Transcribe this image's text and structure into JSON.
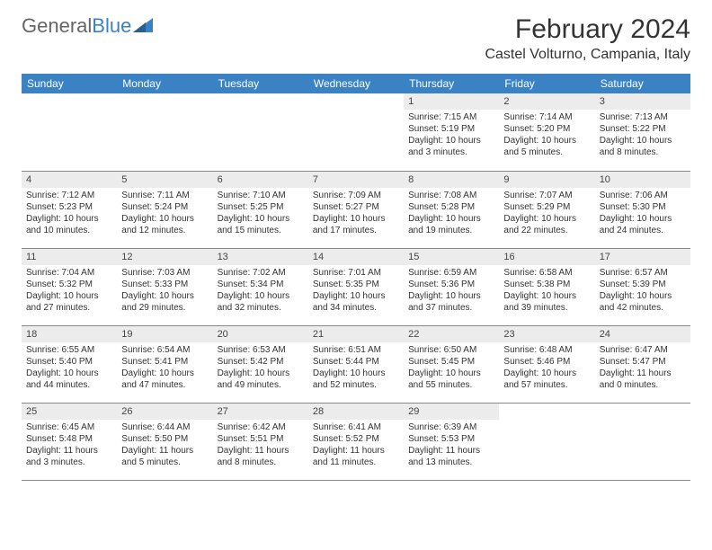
{
  "brand": {
    "part1": "General",
    "part2": "Blue"
  },
  "title": "February 2024",
  "location": "Castel Volturno, Campania, Italy",
  "colors": {
    "header_bg": "#3b82c4",
    "header_text": "#ffffff",
    "daynum_bg": "#ececec",
    "text": "#333333",
    "border": "#888888",
    "page_bg": "#ffffff"
  },
  "typography": {
    "title_fontsize": 30,
    "location_fontsize": 16,
    "weekday_fontsize": 12,
    "cell_fontsize": 10,
    "font_family": "Arial"
  },
  "layout": {
    "columns": 7,
    "rows": 5,
    "first_weekday_index": 4
  },
  "weekdays": [
    "Sunday",
    "Monday",
    "Tuesday",
    "Wednesday",
    "Thursday",
    "Friday",
    "Saturday"
  ],
  "days": [
    {
      "n": "1",
      "sunrise": "Sunrise: 7:15 AM",
      "sunset": "Sunset: 5:19 PM",
      "dl1": "Daylight: 10 hours",
      "dl2": "and 3 minutes."
    },
    {
      "n": "2",
      "sunrise": "Sunrise: 7:14 AM",
      "sunset": "Sunset: 5:20 PM",
      "dl1": "Daylight: 10 hours",
      "dl2": "and 5 minutes."
    },
    {
      "n": "3",
      "sunrise": "Sunrise: 7:13 AM",
      "sunset": "Sunset: 5:22 PM",
      "dl1": "Daylight: 10 hours",
      "dl2": "and 8 minutes."
    },
    {
      "n": "4",
      "sunrise": "Sunrise: 7:12 AM",
      "sunset": "Sunset: 5:23 PM",
      "dl1": "Daylight: 10 hours",
      "dl2": "and 10 minutes."
    },
    {
      "n": "5",
      "sunrise": "Sunrise: 7:11 AM",
      "sunset": "Sunset: 5:24 PM",
      "dl1": "Daylight: 10 hours",
      "dl2": "and 12 minutes."
    },
    {
      "n": "6",
      "sunrise": "Sunrise: 7:10 AM",
      "sunset": "Sunset: 5:25 PM",
      "dl1": "Daylight: 10 hours",
      "dl2": "and 15 minutes."
    },
    {
      "n": "7",
      "sunrise": "Sunrise: 7:09 AM",
      "sunset": "Sunset: 5:27 PM",
      "dl1": "Daylight: 10 hours",
      "dl2": "and 17 minutes."
    },
    {
      "n": "8",
      "sunrise": "Sunrise: 7:08 AM",
      "sunset": "Sunset: 5:28 PM",
      "dl1": "Daylight: 10 hours",
      "dl2": "and 19 minutes."
    },
    {
      "n": "9",
      "sunrise": "Sunrise: 7:07 AM",
      "sunset": "Sunset: 5:29 PM",
      "dl1": "Daylight: 10 hours",
      "dl2": "and 22 minutes."
    },
    {
      "n": "10",
      "sunrise": "Sunrise: 7:06 AM",
      "sunset": "Sunset: 5:30 PM",
      "dl1": "Daylight: 10 hours",
      "dl2": "and 24 minutes."
    },
    {
      "n": "11",
      "sunrise": "Sunrise: 7:04 AM",
      "sunset": "Sunset: 5:32 PM",
      "dl1": "Daylight: 10 hours",
      "dl2": "and 27 minutes."
    },
    {
      "n": "12",
      "sunrise": "Sunrise: 7:03 AM",
      "sunset": "Sunset: 5:33 PM",
      "dl1": "Daylight: 10 hours",
      "dl2": "and 29 minutes."
    },
    {
      "n": "13",
      "sunrise": "Sunrise: 7:02 AM",
      "sunset": "Sunset: 5:34 PM",
      "dl1": "Daylight: 10 hours",
      "dl2": "and 32 minutes."
    },
    {
      "n": "14",
      "sunrise": "Sunrise: 7:01 AM",
      "sunset": "Sunset: 5:35 PM",
      "dl1": "Daylight: 10 hours",
      "dl2": "and 34 minutes."
    },
    {
      "n": "15",
      "sunrise": "Sunrise: 6:59 AM",
      "sunset": "Sunset: 5:36 PM",
      "dl1": "Daylight: 10 hours",
      "dl2": "and 37 minutes."
    },
    {
      "n": "16",
      "sunrise": "Sunrise: 6:58 AM",
      "sunset": "Sunset: 5:38 PM",
      "dl1": "Daylight: 10 hours",
      "dl2": "and 39 minutes."
    },
    {
      "n": "17",
      "sunrise": "Sunrise: 6:57 AM",
      "sunset": "Sunset: 5:39 PM",
      "dl1": "Daylight: 10 hours",
      "dl2": "and 42 minutes."
    },
    {
      "n": "18",
      "sunrise": "Sunrise: 6:55 AM",
      "sunset": "Sunset: 5:40 PM",
      "dl1": "Daylight: 10 hours",
      "dl2": "and 44 minutes."
    },
    {
      "n": "19",
      "sunrise": "Sunrise: 6:54 AM",
      "sunset": "Sunset: 5:41 PM",
      "dl1": "Daylight: 10 hours",
      "dl2": "and 47 minutes."
    },
    {
      "n": "20",
      "sunrise": "Sunrise: 6:53 AM",
      "sunset": "Sunset: 5:42 PM",
      "dl1": "Daylight: 10 hours",
      "dl2": "and 49 minutes."
    },
    {
      "n": "21",
      "sunrise": "Sunrise: 6:51 AM",
      "sunset": "Sunset: 5:44 PM",
      "dl1": "Daylight: 10 hours",
      "dl2": "and 52 minutes."
    },
    {
      "n": "22",
      "sunrise": "Sunrise: 6:50 AM",
      "sunset": "Sunset: 5:45 PM",
      "dl1": "Daylight: 10 hours",
      "dl2": "and 55 minutes."
    },
    {
      "n": "23",
      "sunrise": "Sunrise: 6:48 AM",
      "sunset": "Sunset: 5:46 PM",
      "dl1": "Daylight: 10 hours",
      "dl2": "and 57 minutes."
    },
    {
      "n": "24",
      "sunrise": "Sunrise: 6:47 AM",
      "sunset": "Sunset: 5:47 PM",
      "dl1": "Daylight: 11 hours",
      "dl2": "and 0 minutes."
    },
    {
      "n": "25",
      "sunrise": "Sunrise: 6:45 AM",
      "sunset": "Sunset: 5:48 PM",
      "dl1": "Daylight: 11 hours",
      "dl2": "and 3 minutes."
    },
    {
      "n": "26",
      "sunrise": "Sunrise: 6:44 AM",
      "sunset": "Sunset: 5:50 PM",
      "dl1": "Daylight: 11 hours",
      "dl2": "and 5 minutes."
    },
    {
      "n": "27",
      "sunrise": "Sunrise: 6:42 AM",
      "sunset": "Sunset: 5:51 PM",
      "dl1": "Daylight: 11 hours",
      "dl2": "and 8 minutes."
    },
    {
      "n": "28",
      "sunrise": "Sunrise: 6:41 AM",
      "sunset": "Sunset: 5:52 PM",
      "dl1": "Daylight: 11 hours",
      "dl2": "and 11 minutes."
    },
    {
      "n": "29",
      "sunrise": "Sunrise: 6:39 AM",
      "sunset": "Sunset: 5:53 PM",
      "dl1": "Daylight: 11 hours",
      "dl2": "and 13 minutes."
    }
  ]
}
